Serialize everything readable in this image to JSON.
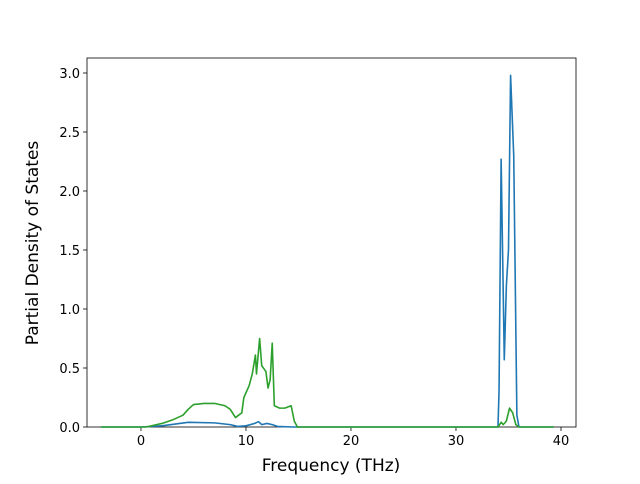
{
  "chart_data": {
    "type": "line",
    "x_label": "Frequency (THz)",
    "y_label": "Partial Density of States",
    "xlim": [
      -5.14,
      41.43
    ],
    "ylim": [
      0,
      3.127
    ],
    "xticks": [
      0,
      10,
      20,
      30,
      40
    ],
    "yticks": [
      {
        "value": 0,
        "label": "0.0"
      },
      {
        "value": 0.5,
        "label": "0.5"
      },
      {
        "value": 1,
        "label": "1.0"
      },
      {
        "value": 1.5,
        "label": "1.5"
      },
      {
        "value": 2,
        "label": "2.0"
      },
      {
        "value": 2.5,
        "label": "2.5"
      },
      {
        "value": 3,
        "label": "3.0"
      }
    ],
    "series": [
      {
        "color": "#1f77b4",
        "x": [
          -3.8,
          0,
          2,
          4.5,
          7,
          8.5,
          9.2,
          10,
          10.8,
          11.2,
          11.5,
          12,
          12.5,
          13,
          14.5,
          34,
          34.1,
          34.3,
          34.6,
          34.8,
          35,
          35.2,
          35.5,
          35.8,
          36,
          39.3
        ],
        "values": [
          0,
          0,
          0.01,
          0.04,
          0.035,
          0.02,
          0.005,
          0.01,
          0.03,
          0.045,
          0.02,
          0.03,
          0.02,
          0.005,
          0,
          0,
          0.3,
          2.27,
          0.57,
          1.2,
          1.5,
          2.98,
          2.3,
          0.1,
          0,
          0
        ]
      },
      {
        "color": "#2ca02c",
        "x": [
          -3.8,
          0.5,
          2,
          3,
          4,
          4.5,
          5,
          6,
          7,
          8,
          8.5,
          9,
          9.3,
          9.6,
          9.8,
          10.3,
          10.6,
          10.9,
          11,
          11.3,
          11.5,
          11.9,
          12.1,
          12.3,
          12.5,
          12.7,
          13.2,
          13.7,
          14.3,
          14.6,
          14.9,
          34,
          34.3,
          34.5,
          34.8,
          35.1,
          35.4,
          35.7,
          36,
          39.3
        ],
        "values": [
          0,
          0,
          0.03,
          0.06,
          0.1,
          0.15,
          0.19,
          0.2,
          0.2,
          0.18,
          0.15,
          0.08,
          0.1,
          0.12,
          0.25,
          0.35,
          0.45,
          0.61,
          0.45,
          0.75,
          0.52,
          0.47,
          0.33,
          0.4,
          0.71,
          0.18,
          0.16,
          0.16,
          0.18,
          0.05,
          0,
          0,
          0.04,
          0.02,
          0.05,
          0.16,
          0.12,
          0.02,
          0,
          0
        ]
      }
    ]
  }
}
